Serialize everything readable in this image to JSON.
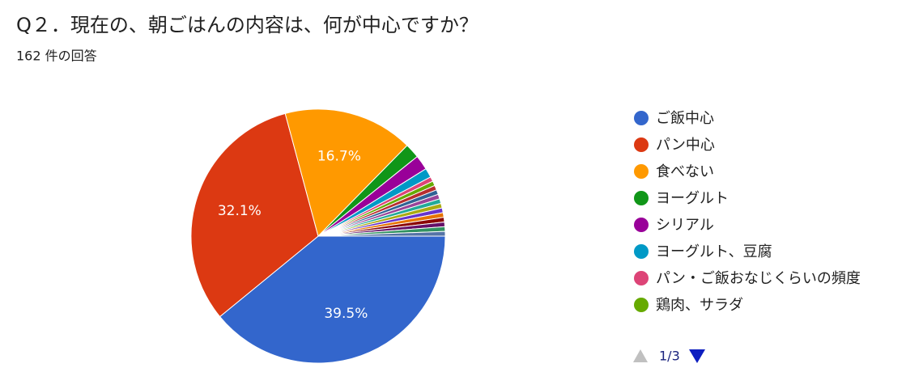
{
  "chart_data": {
    "type": "pie",
    "title": "Q２．現在の、朝ごはんの内容は、何が中心ですか？",
    "subtitle": "162 件の回答",
    "categories": [
      "ご飯中心",
      "パン中心",
      "食べない",
      "ヨーグルト",
      "シリアル",
      "ヨーグルト、豆腐",
      "パン・ご飯おなじくらいの頻度",
      "鶏肉、サラダ",
      null,
      null,
      null,
      null,
      null,
      null,
      null,
      null,
      null,
      null,
      null
    ],
    "values": [
      39.5,
      32.1,
      16.7,
      1.9,
      1.9,
      1.2,
      0.6,
      0.6,
      0.6,
      0.6,
      0.6,
      0.6,
      0.6,
      0.6,
      0.6,
      0.6,
      0.6,
      0.6,
      0.6
    ],
    "value_labels": [
      "39.5%",
      "32.1%",
      "16.7%",
      null,
      null,
      null,
      null,
      null,
      null,
      null,
      null,
      null,
      null,
      null,
      null,
      null,
      null,
      null,
      null
    ],
    "colors": [
      "#3366cc",
      "#dc3912",
      "#ff9900",
      "#109618",
      "#990099",
      "#0099c6",
      "#dd4477",
      "#66aa00",
      "#b82e2e",
      "#316395",
      "#994499",
      "#22aa99",
      "#aaaa11",
      "#6633cc",
      "#e67300",
      "#8b0707",
      "#651067",
      "#329262",
      "#5574a6"
    ],
    "legend_page": "1/3"
  }
}
